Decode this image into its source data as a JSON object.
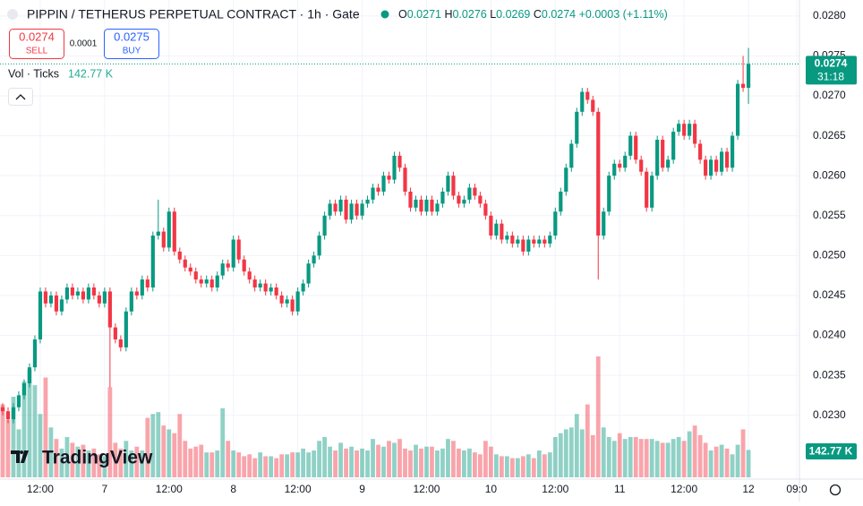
{
  "chart_data": {
    "type": "candlestick",
    "title": "PIPPIN / TETHERUS PERPETUAL CONTRACT · 1h · Gate",
    "categories": [
      null,
      null,
      null,
      null,
      null,
      null,
      null,
      "12:00",
      null,
      null,
      null,
      null,
      null,
      null,
      null,
      null,
      null,
      null,
      null,
      "7",
      null,
      null,
      null,
      null,
      null,
      null,
      null,
      null,
      null,
      null,
      null,
      "12:00",
      null,
      null,
      null,
      null,
      null,
      null,
      null,
      null,
      null,
      null,
      null,
      "8",
      null,
      null,
      null,
      null,
      null,
      null,
      null,
      null,
      null,
      null,
      null,
      "12:00",
      null,
      null,
      null,
      null,
      null,
      null,
      null,
      null,
      null,
      null,
      null,
      "9",
      null,
      null,
      null,
      null,
      null,
      null,
      null,
      null,
      null,
      null,
      null,
      "12:00",
      null,
      null,
      null,
      null,
      null,
      null,
      null,
      null,
      null,
      null,
      null,
      "10",
      null,
      null,
      null,
      null,
      null,
      null,
      null,
      null,
      null,
      null,
      null,
      "12:00",
      null,
      null,
      null,
      null,
      null,
      null,
      null,
      null,
      null,
      null,
      null,
      "11",
      null,
      null,
      null,
      null,
      null,
      null,
      null,
      null,
      null,
      null,
      null,
      "12:00",
      null,
      null,
      null,
      null,
      null,
      null,
      null,
      null,
      null,
      null,
      null,
      "12",
      null,
      null,
      null,
      null,
      null,
      null,
      null,
      null,
      "09:0"
    ],
    "open": [
      0.0231,
      0.02305,
      0.02295,
      0.0231,
      0.02325,
      0.0234,
      0.0236,
      0.02395,
      0.02455,
      0.0244,
      0.0245,
      0.0243,
      0.02445,
      0.0246,
      0.0245,
      0.02455,
      0.02445,
      0.0246,
      0.0245,
      0.0244,
      0.02455,
      0.0241,
      0.02395,
      0.02385,
      0.0243,
      0.02455,
      0.0245,
      0.0247,
      0.0246,
      0.02525,
      0.0253,
      0.0251,
      0.02555,
      0.02505,
      0.02495,
      0.02485,
      0.0248,
      0.0247,
      0.02465,
      0.0247,
      0.0246,
      0.02475,
      0.0249,
      0.02485,
      0.0252,
      0.02495,
      0.0248,
      0.0247,
      0.0246,
      0.02465,
      0.02455,
      0.0246,
      0.0245,
      0.0244,
      0.02445,
      0.0243,
      0.02455,
      0.02465,
      0.0249,
      0.025,
      0.02525,
      0.0255,
      0.02565,
      0.02555,
      0.0257,
      0.02545,
      0.02565,
      0.0255,
      0.02565,
      0.0257,
      0.02585,
      0.0258,
      0.026,
      0.02595,
      0.02625,
      0.0261,
      0.0258,
      0.0256,
      0.0257,
      0.02555,
      0.0257,
      0.02555,
      0.02565,
      0.0258,
      0.026,
      0.02575,
      0.02565,
      0.0257,
      0.02585,
      0.02575,
      0.02565,
      0.0255,
      0.02525,
      0.0254,
      0.0252,
      0.02525,
      0.02515,
      0.0252,
      0.02505,
      0.0252,
      0.02515,
      0.0252,
      0.02515,
      0.02525,
      0.02555,
      0.0258,
      0.0261,
      0.0264,
      0.0268,
      0.02705,
      0.02695,
      0.0268,
      0.02525,
      0.02555,
      0.026,
      0.02615,
      0.0261,
      0.02625,
      0.0265,
      0.0262,
      0.02605,
      0.0256,
      0.026,
      0.02645,
      0.0261,
      0.0262,
      0.02655,
      0.02665,
      0.0265,
      0.02665,
      0.0264,
      0.0262,
      0.026,
      0.0262,
      0.02605,
      0.0263,
      0.0261,
      0.0265,
      0.02715,
      0.0271,
      null,
      null,
      null,
      null,
      null,
      null,
      null,
      null,
      null
    ],
    "high": [
      0.02315,
      0.0231,
      0.02315,
      0.0233,
      0.02345,
      0.02365,
      0.024,
      0.0246,
      0.0246,
      0.02455,
      0.02455,
      0.0245,
      0.02465,
      0.02465,
      0.0246,
      0.0246,
      0.02465,
      0.02465,
      0.02455,
      0.0246,
      0.0246,
      0.02415,
      0.024,
      0.02435,
      0.0246,
      0.0246,
      0.02475,
      0.02475,
      0.0253,
      0.0257,
      0.02535,
      0.0256,
      0.0256,
      0.0251,
      0.025,
      0.0249,
      0.02485,
      0.02475,
      0.02475,
      0.02475,
      0.0248,
      0.02495,
      0.02495,
      0.02525,
      0.02525,
      0.025,
      0.02485,
      0.02475,
      0.0247,
      0.0247,
      0.02465,
      0.02465,
      0.02455,
      0.0245,
      0.0245,
      0.0246,
      0.0247,
      0.02495,
      0.02505,
      0.0253,
      0.02555,
      0.0257,
      0.0257,
      0.02575,
      0.02575,
      0.0257,
      0.0257,
      0.0257,
      0.02575,
      0.0259,
      0.0259,
      0.02605,
      0.02605,
      0.0263,
      0.0263,
      0.02615,
      0.02585,
      0.02575,
      0.02575,
      0.02575,
      0.02575,
      0.0257,
      0.02585,
      0.02605,
      0.02605,
      0.0258,
      0.02575,
      0.0259,
      0.0259,
      0.0258,
      0.0257,
      0.02555,
      0.02545,
      0.02545,
      0.0253,
      0.0253,
      0.02525,
      0.02525,
      0.02525,
      0.02525,
      0.02525,
      0.02525,
      0.0253,
      0.0256,
      0.02585,
      0.02615,
      0.02645,
      0.02685,
      0.0271,
      0.0271,
      0.027,
      0.02685,
      0.0256,
      0.02605,
      0.0262,
      0.0262,
      0.0263,
      0.02655,
      0.02655,
      0.02625,
      0.0261,
      0.02605,
      0.0265,
      0.0265,
      0.02625,
      0.0266,
      0.0267,
      0.0267,
      0.0267,
      0.0267,
      0.02645,
      0.02625,
      0.02625,
      0.02625,
      0.02635,
      0.02635,
      0.02655,
      0.0272,
      0.0275,
      0.0276,
      null,
      null,
      null,
      null,
      null,
      null,
      null,
      null,
      null
    ],
    "low": [
      0.023,
      0.0229,
      0.0229,
      0.02305,
      0.0232,
      0.02335,
      0.02355,
      0.0239,
      0.02435,
      0.02435,
      0.02425,
      0.02425,
      0.0244,
      0.02445,
      0.02445,
      0.0244,
      0.0244,
      0.02445,
      0.02435,
      0.02435,
      0.02335,
      0.0239,
      0.0238,
      0.0238,
      0.02425,
      0.02445,
      0.02445,
      0.02455,
      0.02455,
      0.0252,
      0.02505,
      0.02505,
      0.025,
      0.0249,
      0.0248,
      0.02475,
      0.02465,
      0.0246,
      0.0246,
      0.02455,
      0.02455,
      0.0247,
      0.0248,
      0.0248,
      0.0249,
      0.02475,
      0.02465,
      0.02455,
      0.02455,
      0.0245,
      0.0245,
      0.02445,
      0.02435,
      0.02435,
      0.02425,
      0.02425,
      0.0245,
      0.0246,
      0.02485,
      0.02495,
      0.0252,
      0.02545,
      0.0255,
      0.0255,
      0.0254,
      0.0254,
      0.02545,
      0.02545,
      0.0256,
      0.02565,
      0.02575,
      0.02575,
      0.0259,
      0.0259,
      0.02605,
      0.02575,
      0.02555,
      0.02555,
      0.0255,
      0.0255,
      0.0255,
      0.0255,
      0.0256,
      0.02575,
      0.0257,
      0.0256,
      0.0256,
      0.02565,
      0.0257,
      0.0256,
      0.02545,
      0.0252,
      0.0252,
      0.02515,
      0.02515,
      0.0251,
      0.0251,
      0.025,
      0.025,
      0.0251,
      0.0251,
      0.0251,
      0.0251,
      0.0252,
      0.0255,
      0.02575,
      0.02605,
      0.02635,
      0.02675,
      0.0269,
      0.02675,
      0.0247,
      0.0252,
      0.0255,
      0.02595,
      0.02605,
      0.02605,
      0.0262,
      0.02615,
      0.026,
      0.02555,
      0.02555,
      0.02595,
      0.02605,
      0.02605,
      0.02615,
      0.0265,
      0.02645,
      0.02645,
      0.02635,
      0.02615,
      0.02595,
      0.02595,
      0.026,
      0.026,
      0.02605,
      0.02605,
      0.02645,
      0.02705,
      0.0269,
      null,
      null,
      null,
      null,
      null,
      null,
      null,
      null,
      null
    ],
    "close": [
      0.02305,
      0.02295,
      0.0231,
      0.02325,
      0.0234,
      0.0236,
      0.02395,
      0.02455,
      0.0244,
      0.0245,
      0.0243,
      0.02445,
      0.0246,
      0.0245,
      0.02455,
      0.02445,
      0.0246,
      0.0245,
      0.0244,
      0.02455,
      0.0241,
      0.02395,
      0.02385,
      0.0243,
      0.02455,
      0.0245,
      0.0247,
      0.0246,
      0.02525,
      0.0253,
      0.0251,
      0.02555,
      0.02505,
      0.02495,
      0.02485,
      0.0248,
      0.0247,
      0.02465,
      0.0247,
      0.0246,
      0.02475,
      0.0249,
      0.02485,
      0.0252,
      0.02495,
      0.0248,
      0.0247,
      0.0246,
      0.02465,
      0.02455,
      0.0246,
      0.0245,
      0.0244,
      0.02445,
      0.0243,
      0.02455,
      0.02465,
      0.0249,
      0.025,
      0.02525,
      0.0255,
      0.02565,
      0.02555,
      0.0257,
      0.02545,
      0.02565,
      0.0255,
      0.02565,
      0.0257,
      0.02585,
      0.0258,
      0.026,
      0.02595,
      0.02625,
      0.0261,
      0.0258,
      0.0256,
      0.0257,
      0.02555,
      0.0257,
      0.02555,
      0.02565,
      0.0258,
      0.026,
      0.02575,
      0.02565,
      0.0257,
      0.02585,
      0.02575,
      0.02565,
      0.0255,
      0.02525,
      0.0254,
      0.0252,
      0.02525,
      0.02515,
      0.0252,
      0.02505,
      0.0252,
      0.02515,
      0.0252,
      0.02515,
      0.02525,
      0.02555,
      0.0258,
      0.0261,
      0.0264,
      0.0268,
      0.02705,
      0.02695,
      0.0268,
      0.02525,
      0.02555,
      0.026,
      0.02615,
      0.0261,
      0.02625,
      0.0265,
      0.0262,
      0.02605,
      0.0256,
      0.026,
      0.02645,
      0.0261,
      0.0262,
      0.02655,
      0.02665,
      0.0265,
      0.02665,
      0.0264,
      0.0262,
      0.026,
      0.0262,
      0.02605,
      0.0263,
      0.0261,
      0.0265,
      0.02715,
      0.0271,
      0.0274,
      null,
      null,
      null,
      null,
      null,
      null,
      null,
      null,
      null
    ],
    "volume": {
      "name": "Vol · Ticks",
      "values": [
        380,
        300,
        420,
        250,
        500,
        560,
        480,
        330,
        520,
        260,
        200,
        150,
        210,
        180,
        160,
        170,
        140,
        150,
        120,
        110,
        470,
        180,
        150,
        190,
        140,
        160,
        140,
        310,
        330,
        340,
        270,
        250,
        230,
        330,
        190,
        150,
        160,
        170,
        130,
        130,
        140,
        360,
        190,
        140,
        130,
        110,
        120,
        100,
        130,
        110,
        110,
        100,
        120,
        120,
        130,
        130,
        150,
        130,
        140,
        190,
        210,
        160,
        140,
        180,
        150,
        160,
        140,
        150,
        140,
        200,
        170,
        160,
        190,
        180,
        200,
        150,
        140,
        170,
        150,
        160,
        160,
        140,
        150,
        200,
        190,
        150,
        140,
        150,
        130,
        120,
        190,
        160,
        120,
        110,
        110,
        100,
        100,
        110,
        120,
        100,
        140,
        120,
        130,
        210,
        230,
        250,
        260,
        330,
        250,
        380,
        220,
        630,
        260,
        210,
        190,
        230,
        200,
        210,
        210,
        200,
        200,
        200,
        190,
        180,
        180,
        200,
        210,
        190,
        240,
        270,
        220,
        180,
        140,
        160,
        170,
        150,
        120,
        170,
        250,
        142.77,
        null,
        null,
        null,
        null,
        null,
        null,
        null,
        null,
        null
      ],
      "value_labels": [
        null,
        null,
        null,
        null,
        null,
        null,
        null,
        null,
        null,
        null,
        null,
        null,
        null,
        null,
        null,
        null,
        null,
        null,
        null,
        null,
        null,
        null,
        null,
        null,
        null,
        null,
        null,
        null,
        null,
        null,
        null,
        null,
        null,
        null,
        null,
        null,
        null,
        null,
        null,
        null,
        null,
        null,
        null,
        null,
        null,
        null,
        null,
        null,
        null,
        null,
        null,
        null,
        null,
        null,
        null,
        null,
        null,
        null,
        null,
        null,
        null,
        null,
        null,
        null,
        null,
        null,
        null,
        null,
        null,
        null,
        null,
        null,
        null,
        null,
        null,
        null,
        null,
        null,
        null,
        null,
        null,
        null,
        null,
        null,
        null,
        null,
        null,
        null,
        null,
        null,
        null,
        null,
        null,
        null,
        null,
        null,
        null,
        null,
        null,
        null,
        null,
        null,
        null,
        null,
        null,
        null,
        null,
        null,
        null,
        null,
        null,
        null,
        null,
        null,
        null,
        null,
        null,
        null,
        null,
        null,
        null,
        null,
        null,
        null,
        null,
        null,
        null,
        null,
        null,
        null,
        null,
        null,
        null,
        null,
        null,
        null,
        null,
        null,
        null,
        "142.77 K",
        null,
        null,
        null,
        null,
        null,
        null,
        null,
        null,
        null
      ]
    },
    "ylim": [
      0.0222,
      0.0282
    ],
    "yticks": [
      {
        "value": 0.023,
        "label": "0.0230"
      },
      {
        "value": 0.0235,
        "label": "0.0235"
      },
      {
        "value": 0.024,
        "label": "0.0240"
      },
      {
        "value": 0.0245,
        "label": "0.0245"
      },
      {
        "value": 0.025,
        "label": "0.0250"
      },
      {
        "value": 0.0255,
        "label": "0.0255"
      },
      {
        "value": 0.026,
        "label": "0.0260"
      },
      {
        "value": 0.0265,
        "label": "0.0265"
      },
      {
        "value": 0.027,
        "label": "0.0270"
      },
      {
        "value": 0.0275,
        "label": "0.0275"
      },
      {
        "value": 0.028,
        "label": "0.0280"
      }
    ],
    "grid": true,
    "up_color": "#089981",
    "down_color": "#f23645"
  },
  "header": {
    "ohlc_labels": [
      "O",
      "H",
      "L",
      "C"
    ],
    "change": "+0.0003",
    "change_pct": "(+1.11%)"
  },
  "trade": {
    "sell_price": "0.0274",
    "sell": "SELL",
    "spread": "0.0001",
    "buy_price": "0.0275",
    "buy": "BUY"
  },
  "price_label": {
    "countdown": "31:18"
  },
  "logo": "TradingView"
}
